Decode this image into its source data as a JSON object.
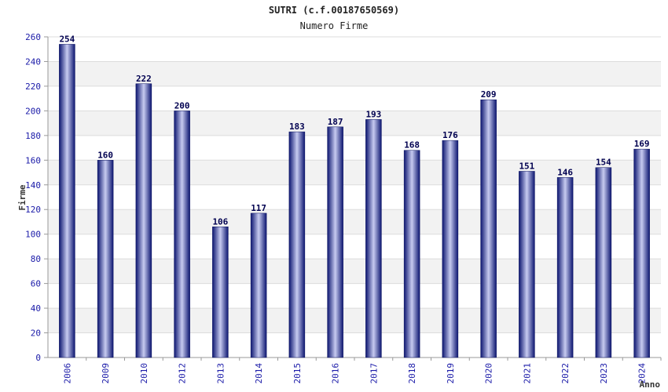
{
  "chart_data": {
    "type": "bar",
    "title": "SUTRI (c.f.00187650569)",
    "subtitle": "Numero Firme",
    "xlabel": "Anno",
    "ylabel": "Firme",
    "categories": [
      "2006",
      "2009",
      "2010",
      "2012",
      "2013",
      "2014",
      "2015",
      "2016",
      "2017",
      "2018",
      "2019",
      "2020",
      "2021",
      "2022",
      "2023",
      "2024"
    ],
    "values": [
      254,
      160,
      222,
      200,
      106,
      117,
      183,
      187,
      193,
      168,
      176,
      209,
      151,
      146,
      154,
      169
    ],
    "ylim": [
      0,
      260
    ],
    "yticks": [
      0,
      20,
      40,
      60,
      80,
      100,
      120,
      140,
      160,
      180,
      200,
      220,
      240,
      260
    ],
    "grid": true,
    "bar_color": "#1c2a8c",
    "bar_highlight": "#c7cbf0"
  }
}
